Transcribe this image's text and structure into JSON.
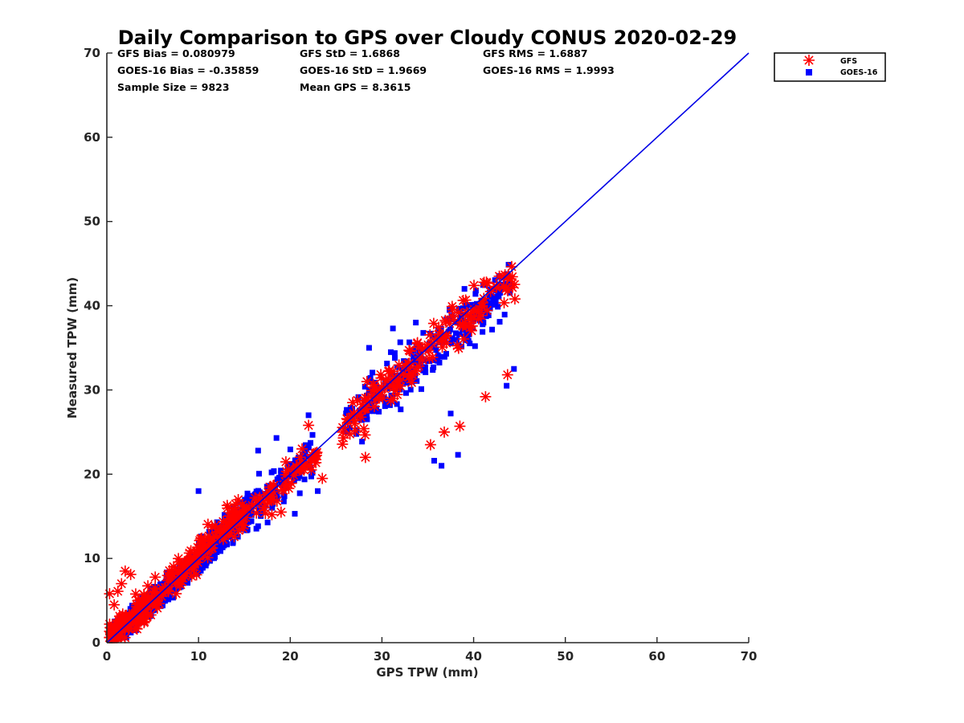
{
  "chart_data": {
    "type": "scatter",
    "title": "Daily Comparison to GPS over Cloudy CONUS 2020-02-29",
    "xlabel": "GPS TPW (mm)",
    "ylabel": "Measured TPW (mm)",
    "xlim": [
      0,
      70
    ],
    "ylim": [
      0,
      70
    ],
    "xticks": [
      "0",
      "10",
      "20",
      "30",
      "40",
      "50",
      "60",
      "70"
    ],
    "yticks": [
      "0",
      "10",
      "20",
      "30",
      "40",
      "50",
      "60",
      "70"
    ],
    "grid": false,
    "legend_position": "outside top-right",
    "stats": [
      [
        "GFS Bias = 0.080979",
        "GFS StD = 1.6868",
        "GFS RMS = 1.6887"
      ],
      [
        "GOES-16 Bias = -0.35859",
        "GOES-16 StD = 1.9669",
        "GOES-16 RMS = 1.9993"
      ],
      [
        "Sample Size = 9823",
        "Mean GPS = 8.3615",
        ""
      ]
    ],
    "reference_line": {
      "x": [
        0,
        70
      ],
      "y": [
        0,
        70
      ],
      "color": "#0000e6"
    },
    "series": [
      {
        "name": "GOES-16",
        "marker": "square",
        "color": "#0000ff",
        "clusters": [
          {
            "n": 2200,
            "x": [
              0.5,
              12.5
            ],
            "slope": 0.97,
            "spread": 1.5
          },
          {
            "n": 400,
            "x": [
              10,
              15.5
            ],
            "slope": 1.02,
            "spread": 2.0
          },
          {
            "n": 140,
            "x": [
              15,
              22.5
            ],
            "slope": 1.0,
            "spread": 3.0
          },
          {
            "n": 280,
            "x": [
              26,
              44
            ],
            "slope": 0.9,
            "spread": 3.8
          }
        ],
        "points": [
          {
            "x": 10,
            "y": 18
          },
          {
            "x": 22,
            "y": 27
          },
          {
            "x": 20.5,
            "y": 15.3
          },
          {
            "x": 36.5,
            "y": 21
          },
          {
            "x": 38.3,
            "y": 22.3
          },
          {
            "x": 35.7,
            "y": 21.6
          },
          {
            "x": 39,
            "y": 42
          },
          {
            "x": 40.2,
            "y": 41.4
          },
          {
            "x": 37.5,
            "y": 27.2
          },
          {
            "x": 31.2,
            "y": 37.3
          },
          {
            "x": 33.7,
            "y": 38
          },
          {
            "x": 28.6,
            "y": 35
          },
          {
            "x": 43.6,
            "y": 30.5
          },
          {
            "x": 44.4,
            "y": 32.5
          },
          {
            "x": 23,
            "y": 18
          },
          {
            "x": 26.5,
            "y": 25.5
          },
          {
            "x": 18.5,
            "y": 24.3
          },
          {
            "x": 16.5,
            "y": 22.8
          }
        ]
      },
      {
        "name": "GFS",
        "marker": "asterisk",
        "color": "#ff0000",
        "clusters": [
          {
            "n": 300,
            "x": [
              0.3,
              15
            ],
            "slope": 1.05,
            "spread": 2.3
          },
          {
            "n": 70,
            "x": [
              14.5,
              23
            ],
            "slope": 0.92,
            "spread": 2.3
          },
          {
            "n": 160,
            "x": [
              25.5,
              44.5
            ],
            "slope": 0.95,
            "spread": 3.3
          }
        ],
        "points": [
          {
            "x": 0.3,
            "y": 5.8
          },
          {
            "x": 1.2,
            "y": 6.1
          },
          {
            "x": 2.0,
            "y": 8.5
          },
          {
            "x": 2.6,
            "y": 8.1
          },
          {
            "x": 1.6,
            "y": 7.0
          },
          {
            "x": 0.8,
            "y": 4.5
          },
          {
            "x": 0.5,
            "y": 1.8
          },
          {
            "x": 1.0,
            "y": 2.3
          },
          {
            "x": 22,
            "y": 25.8
          },
          {
            "x": 23.5,
            "y": 19.5
          },
          {
            "x": 28.2,
            "y": 22
          },
          {
            "x": 35.3,
            "y": 23.5
          },
          {
            "x": 36.8,
            "y": 25
          },
          {
            "x": 38.5,
            "y": 25.7
          },
          {
            "x": 42.8,
            "y": 43.5
          },
          {
            "x": 41.4,
            "y": 42.8
          },
          {
            "x": 44.5,
            "y": 40.8
          },
          {
            "x": 43.5,
            "y": 42
          },
          {
            "x": 41.3,
            "y": 29.2
          },
          {
            "x": 43.7,
            "y": 31.8
          },
          {
            "x": 19,
            "y": 15.5
          },
          {
            "x": 18,
            "y": 15.2
          },
          {
            "x": 21,
            "y": 21.2
          },
          {
            "x": 25.8,
            "y": 24.3
          }
        ]
      }
    ]
  },
  "legend": {
    "items": [
      {
        "label": "GFS",
        "marker": "asterisk",
        "color": "#ff0000"
      },
      {
        "label": "GOES-16",
        "marker": "square",
        "color": "#0000ff"
      }
    ]
  }
}
